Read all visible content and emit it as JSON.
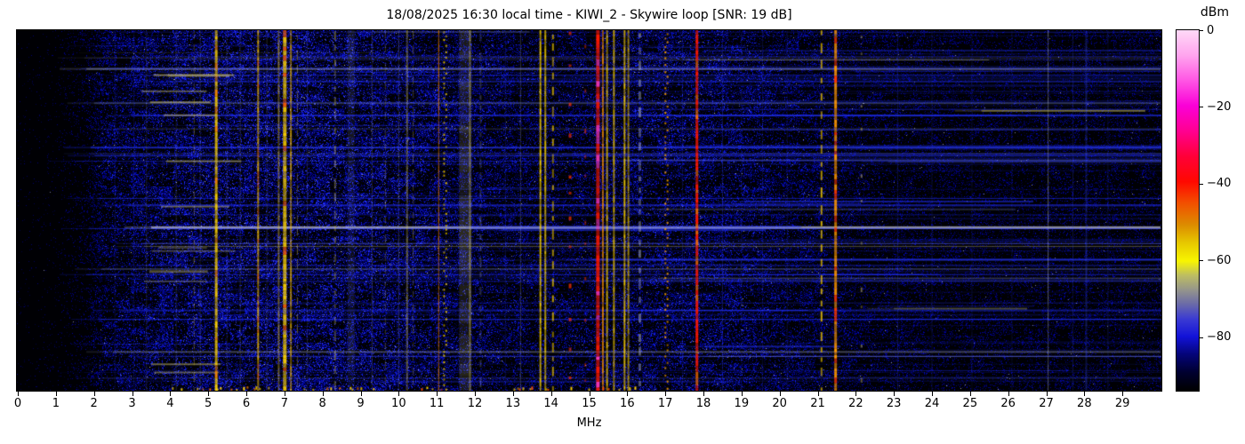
{
  "chart_data": {
    "type": "heatmap",
    "title": "18/08/2025 16:30 local time - KIWI_2 - Skywire loop [SNR: 19 dB]",
    "xlabel": "MHz",
    "x_range": [
      0,
      30
    ],
    "x_ticks": [
      0,
      1,
      2,
      3,
      4,
      5,
      6,
      7,
      8,
      9,
      10,
      11,
      12,
      13,
      14,
      15,
      16,
      17,
      18,
      19,
      20,
      21,
      22,
      23,
      24,
      25,
      26,
      27,
      28,
      29
    ],
    "colorbar": {
      "label": "dBm",
      "range": [
        0,
        -94
      ],
      "ticks": [
        {
          "value": 0,
          "label": "0"
        },
        {
          "value": -20,
          "label": "−20"
        },
        {
          "value": -40,
          "label": "−40"
        },
        {
          "value": -60,
          "label": "−60"
        },
        {
          "value": -80,
          "label": "−80"
        }
      ],
      "gradient": [
        [
          "0%",
          "#ffd9f7"
        ],
        [
          "7%",
          "#ffa4ee"
        ],
        [
          "14%",
          "#ff55e4"
        ],
        [
          "21%",
          "#fa00d7"
        ],
        [
          "28%",
          "#ff0090"
        ],
        [
          "35%",
          "#ff0038"
        ],
        [
          "42%",
          "#ff0800"
        ],
        [
          "48%",
          "#f25000"
        ],
        [
          "54%",
          "#dc8c00"
        ],
        [
          "59%",
          "#e6c800"
        ],
        [
          "64%",
          "#f8f500"
        ],
        [
          "68%",
          "#bdbd62"
        ],
        [
          "72%",
          "#95958b"
        ],
        [
          "76%",
          "#6a6aa8"
        ],
        [
          "80%",
          "#3c3cd2"
        ],
        [
          "85%",
          "#1212d8"
        ],
        [
          "90%",
          "#040477"
        ],
        [
          "95%",
          "#00002e"
        ],
        [
          "100%",
          "#000000"
        ]
      ]
    },
    "noise_profile": [
      [
        0,
        0.03,
        0.3
      ],
      [
        1.0,
        0.05,
        0.35
      ],
      [
        1.7,
        0.2,
        0.55
      ],
      [
        2.3,
        0.6,
        0.8
      ],
      [
        3.2,
        0.72,
        0.85
      ],
      [
        4.2,
        0.8,
        0.95
      ],
      [
        6.0,
        0.85,
        1.0
      ],
      [
        8.5,
        0.85,
        1.0
      ],
      [
        10.5,
        0.78,
        0.92
      ],
      [
        12.0,
        0.68,
        0.85
      ],
      [
        13.5,
        0.58,
        0.8
      ],
      [
        15.0,
        0.55,
        0.82
      ],
      [
        16.5,
        0.68,
        0.9
      ],
      [
        18.0,
        0.7,
        0.9
      ],
      [
        19.5,
        0.62,
        0.82
      ],
      [
        21.0,
        0.55,
        0.75
      ],
      [
        22.3,
        0.42,
        0.65
      ],
      [
        24.0,
        0.36,
        0.6
      ],
      [
        26.0,
        0.34,
        0.58
      ],
      [
        28.0,
        0.36,
        0.62
      ],
      [
        30.0,
        0.34,
        0.58
      ]
    ],
    "carriers": [
      {
        "f": 2.55,
        "w": 1,
        "c": "#2d3cf0",
        "s": "solid",
        "a": 0.25
      },
      {
        "f": 3.05,
        "w": 1,
        "c": "#2d3cf0",
        "s": "solid",
        "a": 0.25
      },
      {
        "f": 3.38,
        "w": 1,
        "c": "#8c93b5",
        "s": "solid",
        "a": 0.25
      },
      {
        "f": 3.8,
        "w": 1,
        "c": "#2d3cf0",
        "s": "dashed",
        "a": 0.3
      },
      {
        "f": 4.16,
        "w": 1,
        "c": "#8c93b5",
        "s": "solid",
        "a": 0.28
      },
      {
        "f": 4.63,
        "w": 1,
        "c": "#d8c040",
        "s": "dashed",
        "a": 0.4
      },
      {
        "f": 4.79,
        "w": 1,
        "c": "#8c93b5",
        "s": "solid",
        "a": 0.3
      },
      {
        "f": 5.21,
        "w": 3,
        "c": "#ffd400",
        "s": "solid",
        "a": 0.95,
        "seg": "#ff9000"
      },
      {
        "f": 5.49,
        "w": 1,
        "c": "#8c93b5",
        "s": "solid",
        "a": 0.25
      },
      {
        "f": 5.84,
        "w": 1,
        "c": "#8c93b5",
        "s": "solid",
        "a": 0.3
      },
      {
        "f": 6.31,
        "w": 2,
        "c": "#ffc400",
        "s": "solid",
        "a": 0.8,
        "seg": "#ff7800"
      },
      {
        "f": 6.54,
        "w": 1,
        "c": "#8c93b5",
        "s": "solid",
        "a": 0.3
      },
      {
        "f": 6.85,
        "w": 2,
        "c": "#e3c23a",
        "s": "solid",
        "a": 0.55
      },
      {
        "f": 7.01,
        "w": 4,
        "c": "#ffd400",
        "s": "solid",
        "a": 0.95,
        "seg": "#ff6000"
      },
      {
        "f": 7.17,
        "w": 2,
        "c": "#ffc400",
        "s": "solid",
        "a": 0.7
      },
      {
        "f": 7.34,
        "w": 1,
        "c": "#d0b845",
        "s": "dashed",
        "a": 0.5
      },
      {
        "f": 7.6,
        "w": 1,
        "c": "#8c93b5",
        "s": "solid",
        "a": 0.25
      },
      {
        "f": 8.33,
        "w": 2,
        "c": "#cfc060",
        "s": "dashed",
        "a": 0.45
      },
      {
        "f": 8.75,
        "w": 8,
        "c": "#7e86aa",
        "s": "diffuse",
        "a": 0.22
      },
      {
        "f": 9.3,
        "w": 1,
        "c": "#9aa0c0",
        "s": "solid",
        "a": 0.3
      },
      {
        "f": 9.65,
        "w": 1,
        "c": "#cfc060",
        "s": "dashed",
        "a": 0.35
      },
      {
        "f": 10.0,
        "w": 1,
        "c": "#9aa0c0",
        "s": "solid",
        "a": 0.35
      },
      {
        "f": 10.22,
        "w": 2,
        "c": "#cfc060",
        "s": "solid",
        "a": 0.5
      },
      {
        "f": 10.38,
        "w": 1,
        "c": "#cfc060",
        "s": "dashed",
        "a": 0.4
      },
      {
        "f": 11.05,
        "w": 1,
        "c": "#ff8800",
        "s": "solid",
        "a": 0.85
      },
      {
        "f": 11.22,
        "w": 2,
        "c": "#ffd400",
        "s": "dotted",
        "a": 0.85
      },
      {
        "f": 11.75,
        "w": 14,
        "c": "#b2ab6e",
        "s": "diffuse",
        "a": 0.3
      },
      {
        "f": 11.87,
        "w": 2,
        "c": "#d9c95e",
        "s": "solid",
        "a": 0.5
      },
      {
        "f": 12.15,
        "w": 2,
        "c": "#8a92c2",
        "s": "dashed",
        "a": 0.35
      },
      {
        "f": 12.8,
        "w": 1,
        "c": "#2d3cf0",
        "s": "solid",
        "a": 0.3
      },
      {
        "f": 13.2,
        "w": 1,
        "c": "#9aa0c0",
        "s": "solid",
        "a": 0.35
      },
      {
        "f": 13.72,
        "w": 2,
        "c": "#ffd800",
        "s": "solid",
        "a": 0.95
      },
      {
        "f": 13.85,
        "w": 2,
        "c": "#ffd800",
        "s": "solid",
        "a": 0.85
      },
      {
        "f": 14.05,
        "w": 2,
        "c": "#ffd400",
        "s": "dashed",
        "a": 0.7
      },
      {
        "f": 14.5,
        "w": 3,
        "c": "#ff3000",
        "s": "sparsedot",
        "a": 0.8
      },
      {
        "f": 14.9,
        "w": 2,
        "c": "#ff3000",
        "s": "sparsedot",
        "a": 0.6
      },
      {
        "f": 15.23,
        "w": 4,
        "c": "#ff1800",
        "s": "solid",
        "a": 1.0,
        "seg": "#ff38b8"
      },
      {
        "f": 15.36,
        "w": 2,
        "c": "#ff9400",
        "s": "solid",
        "a": 0.85
      },
      {
        "f": 15.47,
        "w": 2,
        "c": "#ffd400",
        "s": "solid",
        "a": 0.8
      },
      {
        "f": 15.65,
        "w": 2,
        "c": "#ffd400",
        "s": "solid",
        "a": 0.78
      },
      {
        "f": 15.93,
        "w": 2,
        "c": "#ffd400",
        "s": "solid",
        "a": 0.88
      },
      {
        "f": 16.03,
        "w": 2,
        "c": "#ffd400",
        "s": "solid",
        "a": 0.66
      },
      {
        "f": 16.33,
        "w": 3,
        "c": "#a9afc4",
        "s": "dashed",
        "a": 0.55
      },
      {
        "f": 17.03,
        "w": 2,
        "c": "#ffa400",
        "s": "dotted",
        "a": 0.9
      },
      {
        "f": 17.45,
        "w": 1,
        "c": "#2d3cf0",
        "s": "solid",
        "a": 0.3
      },
      {
        "f": 17.83,
        "w": 3,
        "c": "#ff1800",
        "s": "solid",
        "a": 1.0,
        "seg": "#ff7000"
      },
      {
        "f": 18.5,
        "w": 1,
        "c": "#3a49ff",
        "s": "solid",
        "a": 0.35
      },
      {
        "f": 19.0,
        "w": 1,
        "c": "#3a49ff",
        "s": "dashed",
        "a": 0.33
      },
      {
        "f": 19.55,
        "w": 1,
        "c": "#3a49ff",
        "s": "solid",
        "a": 0.25
      },
      {
        "f": 20.2,
        "w": 1,
        "c": "#3a49ff",
        "s": "solid",
        "a": 0.22
      },
      {
        "f": 21.1,
        "w": 2,
        "c": "#ffd400",
        "s": "dashed",
        "a": 0.85
      },
      {
        "f": 21.47,
        "w": 3,
        "c": "#ff9800",
        "s": "solid",
        "a": 1.0,
        "seg": "#ff3800"
      },
      {
        "f": 22.15,
        "w": 2,
        "c": "#d8c860",
        "s": "sparsedot",
        "a": 0.5
      },
      {
        "f": 23.1,
        "w": 1,
        "c": "#3346ee",
        "s": "solid",
        "a": 0.3
      },
      {
        "f": 24.0,
        "w": 1,
        "c": "#3346ee",
        "s": "solid",
        "a": 0.25
      },
      {
        "f": 25.05,
        "w": 1,
        "c": "#3346ee",
        "s": "solid",
        "a": 0.22
      },
      {
        "f": 26.1,
        "w": 1,
        "c": "#3346ee",
        "s": "solid",
        "a": 0.2
      },
      {
        "f": 27.05,
        "w": 1,
        "c": "#c7cbe0",
        "s": "solid",
        "a": 0.5
      },
      {
        "f": 27.7,
        "w": 1,
        "c": "#3346ee",
        "s": "solid",
        "a": 0.3
      },
      {
        "f": 28.05,
        "w": 2,
        "c": "#3346ee",
        "s": "solid",
        "a": 0.38
      },
      {
        "f": 28.62,
        "w": 1,
        "c": "#3346ee",
        "s": "solid",
        "a": 0.28
      }
    ],
    "feature_rows": [
      {
        "y": 0.105,
        "f0": 1.8,
        "f1": 30,
        "h": 2,
        "c": "#b9bdd0",
        "a": 0.5
      },
      {
        "y": 0.2,
        "f0": 2.0,
        "f1": 30,
        "h": 2,
        "c": "#8090d8",
        "a": 0.35
      },
      {
        "y": 0.221,
        "f0": 25.3,
        "f1": 29.6,
        "h": 2,
        "c": "#cfc258",
        "a": 0.55
      },
      {
        "y": 0.544,
        "f0": 3.5,
        "f1": 30,
        "h": 3,
        "c": "#c6c9da",
        "a": 0.7
      },
      {
        "y": 0.66,
        "f0": 2.2,
        "f1": 30,
        "h": 2,
        "c": "#8090d8",
        "a": 0.3
      },
      {
        "y": 0.77,
        "f0": 23.0,
        "f1": 26.5,
        "h": 2,
        "c": "#b9b468",
        "a": 0.4
      },
      {
        "y": 0.89,
        "f0": 2.5,
        "f1": 30,
        "h": 2,
        "c": "#9aa2c4",
        "a": 0.4
      }
    ],
    "render": {
      "seed": 20250818,
      "streaks": 135
    }
  }
}
